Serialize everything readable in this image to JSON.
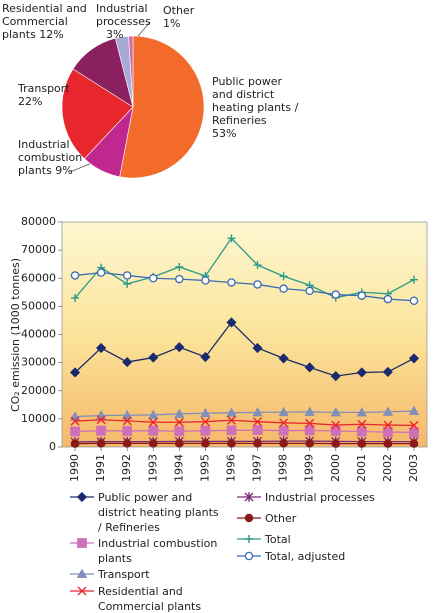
{
  "chart_data": [
    {
      "type": "pie",
      "categories": [
        "Public power and district heating plants / Refineries",
        "Industrial combustion plants",
        "Transport",
        "Residential and Commercial plants",
        "Industrial processes",
        "Other"
      ],
      "values": [
        53,
        9,
        22,
        12,
        3,
        1
      ],
      "value_labels": [
        "53%",
        "9%",
        "22%",
        "12%",
        "3%",
        "1%"
      ],
      "colors": [
        "#f26b2a",
        "#c0288f",
        "#e8262e",
        "#8b2060",
        "#a9a9d8",
        "#d16ba5"
      ]
    },
    {
      "type": "line",
      "y_label": "CO₂ emission (1000 tonnes)",
      "categories": [
        "1990",
        "1991",
        "1992",
        "1993",
        "1994",
        "1995",
        "1996",
        "1997",
        "1998",
        "1999",
        "2000",
        "2001",
        "2002",
        "2003"
      ],
      "ylim": [
        0,
        80000
      ],
      "yticks": [
        0,
        10000,
        20000,
        30000,
        40000,
        50000,
        60000,
        70000,
        80000
      ],
      "series": [
        {
          "name": "Public power and district heating plants / Refineries",
          "color": "#1a2a6c",
          "marker": "diamond",
          "values": [
            26500,
            35200,
            30200,
            31800,
            35500,
            32000,
            44300,
            35200,
            31500,
            28300,
            25200,
            26500,
            26700,
            31500
          ]
        },
        {
          "name": "Industrial combustion plants",
          "color": "#d070b8",
          "marker": "square",
          "values": [
            5500,
            5800,
            5700,
            5800,
            5600,
            5800,
            5900,
            6000,
            5800,
            5900,
            5700,
            5500,
            5300,
            5200
          ]
        },
        {
          "name": "Transport",
          "color": "#8090b8",
          "marker": "triangle",
          "values": [
            10800,
            11200,
            11300,
            11400,
            11800,
            12000,
            12200,
            12300,
            12400,
            12500,
            12300,
            12300,
            12500,
            12800
          ]
        },
        {
          "name": "Residential and Commercial plants",
          "color": "#e8262e",
          "marker": "x",
          "values": [
            9200,
            9700,
            9300,
            8800,
            8800,
            9000,
            9500,
            9000,
            8600,
            8400,
            7800,
            8100,
            7800,
            7700
          ]
        },
        {
          "name": "Industrial processes",
          "color": "#7a2a7a",
          "marker": "star",
          "values": [
            1800,
            1900,
            1900,
            1900,
            2000,
            2000,
            2000,
            2000,
            2100,
            2100,
            2000,
            1900,
            1900,
            1900
          ]
        },
        {
          "name": "Other",
          "color": "#8a1a1a",
          "marker": "circle",
          "values": [
            1200,
            1300,
            1300,
            1300,
            1300,
            1300,
            1300,
            1300,
            1300,
            1300,
            1200,
            1200,
            1200,
            1200
          ]
        },
        {
          "name": "Total",
          "color": "#2a9a8a",
          "marker": "plus",
          "values": [
            53000,
            63800,
            58000,
            60500,
            64000,
            60800,
            74200,
            64700,
            60700,
            57500,
            53100,
            55000,
            54500,
            59500
          ]
        },
        {
          "name": "Total, adjusted",
          "color": "#3a6ab0",
          "marker": "open-circle",
          "values": [
            61000,
            62000,
            61000,
            60000,
            59700,
            59200,
            58500,
            57800,
            56300,
            55500,
            54200,
            53800,
            52600,
            52000
          ]
        }
      ]
    }
  ]
}
